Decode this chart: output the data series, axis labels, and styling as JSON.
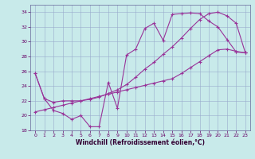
{
  "xlabel": "Windchill (Refroidissement éolien,°C)",
  "background_color": "#c8eaea",
  "grid_color": "#99aacc",
  "line_color": "#993399",
  "xlim": [
    -0.5,
    23.5
  ],
  "ylim": [
    18,
    35
  ],
  "yticks": [
    18,
    20,
    22,
    24,
    26,
    28,
    30,
    32,
    34
  ],
  "xticks": [
    0,
    1,
    2,
    3,
    4,
    5,
    6,
    7,
    8,
    9,
    10,
    11,
    12,
    13,
    14,
    15,
    16,
    17,
    18,
    19,
    20,
    21,
    22,
    23
  ],
  "line1_x": [
    0,
    1,
    2,
    3,
    4,
    5,
    6,
    7,
    8,
    9,
    10,
    11,
    12,
    13,
    14,
    15,
    16,
    17,
    18,
    19,
    20,
    21,
    22,
    23
  ],
  "line1_y": [
    25.7,
    22.3,
    20.7,
    20.3,
    19.5,
    20.0,
    18.5,
    18.5,
    24.5,
    21.0,
    28.2,
    29.0,
    31.8,
    32.5,
    30.2,
    33.7,
    33.8,
    33.9,
    33.8,
    32.8,
    32.0,
    30.3,
    28.6,
    28.5
  ],
  "line2_x": [
    0,
    1,
    2,
    3,
    4,
    5,
    6,
    7,
    8,
    9,
    10,
    11,
    12,
    13,
    14,
    15,
    16,
    17,
    18,
    19,
    20,
    21,
    22,
    23
  ],
  "line2_y": [
    20.5,
    20.8,
    21.1,
    21.4,
    21.7,
    22.0,
    22.3,
    22.6,
    22.9,
    23.2,
    23.5,
    23.8,
    24.1,
    24.4,
    24.7,
    25.0,
    25.7,
    26.5,
    27.3,
    28.1,
    28.9,
    29.0,
    28.7,
    28.5
  ],
  "line3_x": [
    0,
    1,
    2,
    3,
    4,
    5,
    6,
    7,
    8,
    9,
    10,
    11,
    12,
    13,
    14,
    15,
    16,
    17,
    18,
    19,
    20,
    21,
    22,
    23
  ],
  "line3_y": [
    25.7,
    22.3,
    21.8,
    22.0,
    22.0,
    22.0,
    22.2,
    22.5,
    23.0,
    23.5,
    24.2,
    25.2,
    26.3,
    27.2,
    28.3,
    29.3,
    30.5,
    31.8,
    33.0,
    33.8,
    34.0,
    33.5,
    32.5,
    28.5
  ]
}
